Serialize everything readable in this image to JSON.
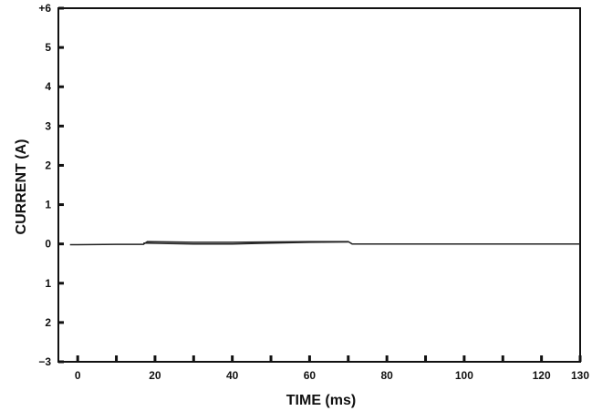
{
  "chart_data": {
    "type": "line",
    "title": "",
    "xlabel": "TIME (ms)",
    "ylabel": "CURRENT (A)",
    "xlim": [
      -5,
      130
    ],
    "ylim": [
      -3,
      6
    ],
    "x_ticks": [
      0,
      10,
      20,
      30,
      40,
      50,
      60,
      70,
      80,
      90,
      100,
      110,
      120,
      130
    ],
    "x_tick_labels": [
      {
        "value": 0,
        "label": "0"
      },
      {
        "value": 20,
        "label": "20"
      },
      {
        "value": 40,
        "label": "40"
      },
      {
        "value": 60,
        "label": "60"
      },
      {
        "value": 80,
        "label": "80"
      },
      {
        "value": 100,
        "label": "100"
      },
      {
        "value": 120,
        "label": "120"
      },
      {
        "value": 130,
        "label": "130"
      }
    ],
    "y_ticks": [
      {
        "value": 6,
        "label": "+6"
      },
      {
        "value": 5,
        "label": "5"
      },
      {
        "value": 4,
        "label": "4"
      },
      {
        "value": 3,
        "label": "3"
      },
      {
        "value": 2,
        "label": "2"
      },
      {
        "value": 1,
        "label": "1"
      },
      {
        "value": 0,
        "label": "0"
      },
      {
        "value": -1,
        "label": "1"
      },
      {
        "value": -2,
        "label": "2"
      },
      {
        "value": -3,
        "label": "−3"
      }
    ],
    "grid": false,
    "legend": "none",
    "line_color": "#222222",
    "series": [
      {
        "x": [
          -2,
          0,
          10,
          17,
          18,
          30,
          40,
          50,
          60,
          70,
          71,
          80,
          90,
          100,
          110,
          120,
          130
        ],
        "y": [
          -0.02,
          -0.02,
          -0.01,
          -0.01,
          0.06,
          0.04,
          0.04,
          0.05,
          0.06,
          0.06,
          0.0,
          0.0,
          0.0,
          0.0,
          0.0,
          0.0,
          0.0
        ]
      },
      {
        "x": [
          17,
          30,
          40,
          50,
          60,
          70
        ],
        "y": [
          0.02,
          0.0,
          0.0,
          0.02,
          0.04,
          0.05
        ]
      }
    ]
  }
}
